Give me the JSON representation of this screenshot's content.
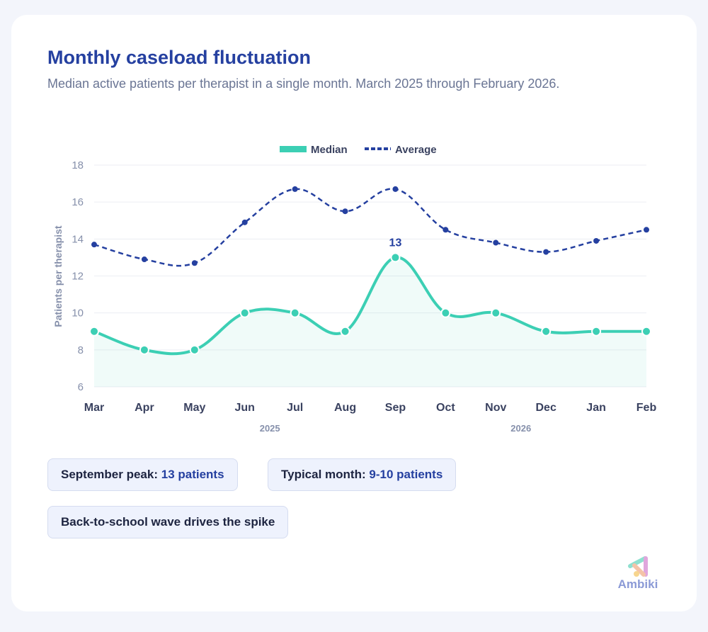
{
  "header": {
    "title": "Monthly caseload fluctuation",
    "subtitle": "Median active patients per therapist in a single month. March 2025 through February 2026."
  },
  "chart_data": {
    "type": "line",
    "categories": [
      "Mar",
      "Apr",
      "May",
      "Jun",
      "Jul",
      "Aug",
      "Sep",
      "Oct",
      "Nov",
      "Dec",
      "Jan",
      "Feb"
    ],
    "year_labels": [
      {
        "label": "2025",
        "between": [
          "Jun",
          "Jul"
        ]
      },
      {
        "label": "2026",
        "between": [
          "Nov",
          "Dec"
        ]
      }
    ],
    "ylabel": "Patients per therapist",
    "ylim": [
      6,
      18
    ],
    "yticks": [
      6,
      8,
      10,
      12,
      14,
      16,
      18
    ],
    "grid": true,
    "legend_position": "top-center",
    "series": [
      {
        "name": "Median",
        "color": "#3ccfb4",
        "style": "solid",
        "area_fill": true,
        "values": [
          9,
          8,
          8,
          10,
          10,
          9,
          13,
          10,
          10,
          9,
          9,
          9
        ]
      },
      {
        "name": "Average",
        "color": "#2540a0",
        "style": "dashed",
        "values": [
          13.7,
          12.9,
          12.7,
          14.9,
          16.7,
          15.5,
          16.7,
          14.5,
          13.8,
          13.3,
          13.9,
          14.5
        ]
      }
    ],
    "annotations": [
      {
        "category": "Sep",
        "series": "Median",
        "text": "13"
      }
    ]
  },
  "callouts": [
    {
      "label": "September peak:",
      "value": "13 patients"
    },
    {
      "label": "Typical month:",
      "value": "9-10 patients"
    },
    {
      "label": "Back-to-school wave drives the spike",
      "value": ""
    }
  ],
  "logo": {
    "text": "Ambiki"
  }
}
